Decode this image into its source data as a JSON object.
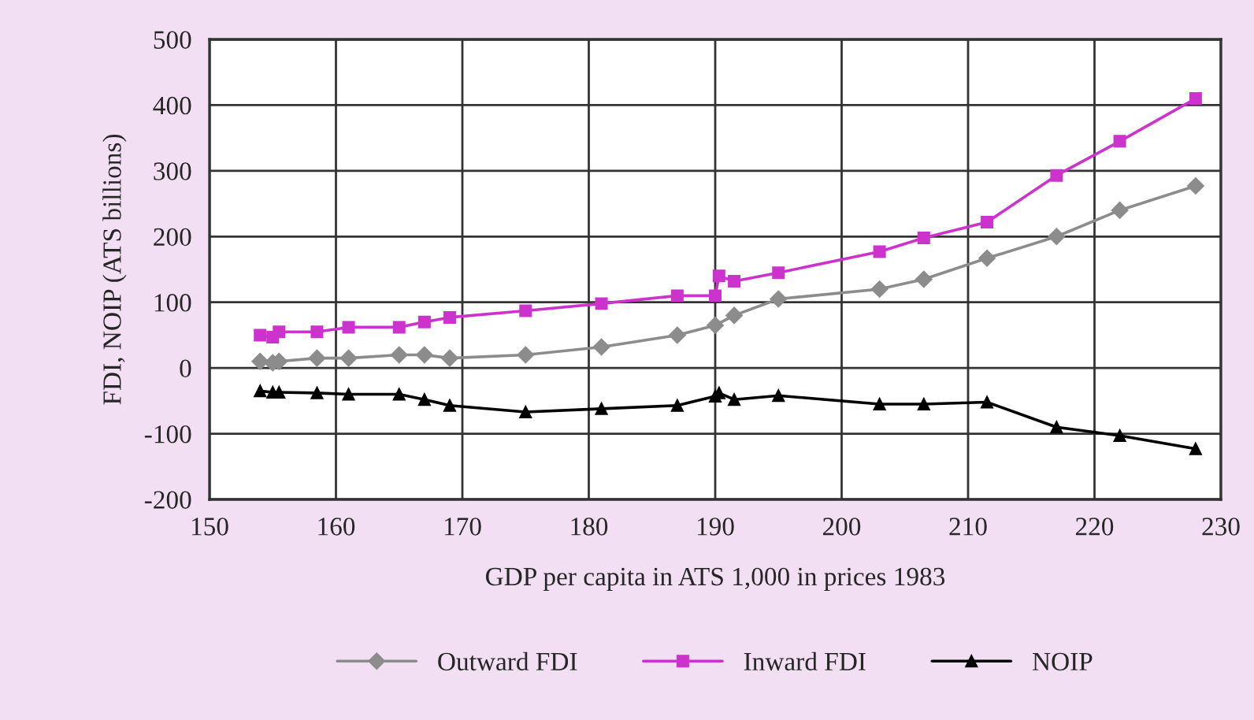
{
  "chart_data": {
    "type": "line",
    "xlabel": "GDP per capita in ATS 1,000 in prices 1983",
    "ylabel": "FDI, NOIP (ATS billions)",
    "xlim": [
      150,
      230
    ],
    "xticks": [
      150,
      160,
      170,
      180,
      190,
      200,
      210,
      220,
      230
    ],
    "ylim": [
      -200,
      500
    ],
    "yticks": [
      -200,
      -100,
      0,
      100,
      200,
      300,
      400,
      500
    ],
    "grid": true,
    "legend": "bottom",
    "line_style": "solid",
    "series": [
      {
        "name": "Outward FDI",
        "color": "#8c8c8c",
        "marker": "diamond",
        "x": [
          154,
          155,
          155.5,
          158.5,
          161,
          165,
          167,
          169,
          175,
          181,
          187,
          190,
          191.5,
          195,
          203,
          206.5,
          211.5,
          217,
          222,
          228
        ],
        "values": [
          10,
          8,
          10,
          15,
          15,
          20,
          20,
          15,
          20,
          32,
          50,
          65,
          80,
          105,
          120,
          135,
          167,
          200,
          240,
          277
        ]
      },
      {
        "name": "Inward FDI",
        "color": "#cc33cc",
        "marker": "square",
        "x": [
          154,
          155,
          155.5,
          158.5,
          161,
          165,
          167,
          169,
          175,
          181,
          187,
          190,
          190.3,
          191.5,
          195,
          203,
          206.5,
          211.5,
          217,
          222,
          228
        ],
        "values": [
          50,
          47,
          55,
          55,
          62,
          62,
          70,
          77,
          87,
          98,
          110,
          110,
          140,
          132,
          145,
          177,
          198,
          222,
          293,
          345,
          410
        ]
      },
      {
        "name": "NOIP",
        "color": "#000000",
        "marker": "triangle",
        "x": [
          154,
          155,
          155.5,
          158.5,
          161,
          165,
          167,
          169,
          175,
          181,
          187,
          190,
          190.3,
          191.5,
          195,
          203,
          206.5,
          211.5,
          217,
          222,
          228
        ],
        "values": [
          -35,
          -37,
          -37,
          -38,
          -40,
          -40,
          -48,
          -57,
          -67,
          -62,
          -57,
          -43,
          -38,
          -48,
          -42,
          -55,
          -55,
          -52,
          -90,
          -103,
          -123
        ]
      }
    ]
  }
}
